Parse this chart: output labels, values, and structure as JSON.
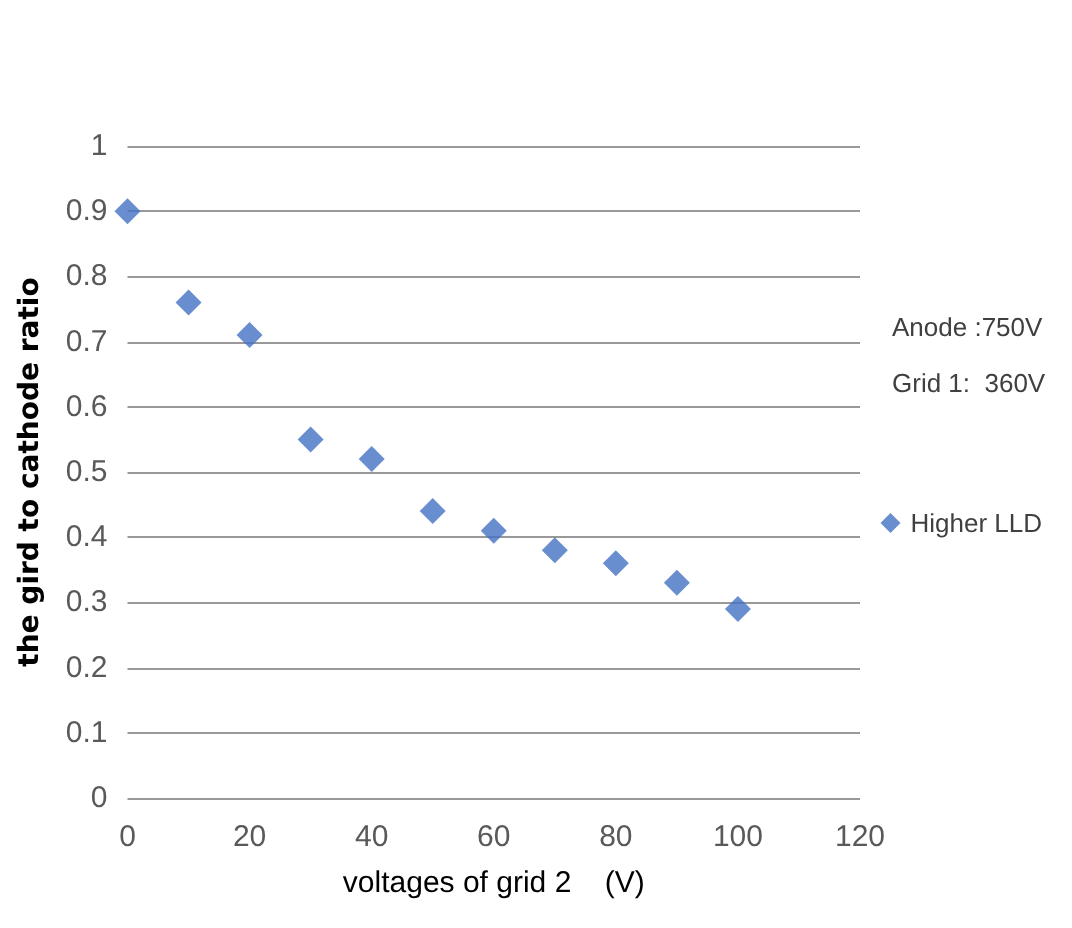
{
  "chart_data": {
    "type": "scatter",
    "xlabel": "voltages of grid 2    (V)",
    "ylabel": "the gird to cathode ratio",
    "x": [
      0,
      10,
      20,
      30,
      40,
      50,
      60,
      70,
      80,
      90,
      100
    ],
    "series": [
      {
        "name": "Higher LLD",
        "color": "#4472c4",
        "values": [
          0.9,
          0.76,
          0.71,
          0.55,
          0.52,
          0.44,
          0.41,
          0.38,
          0.36,
          0.33,
          0.29
        ]
      }
    ],
    "xlim": [
      0,
      120
    ],
    "xticks": [
      0,
      20,
      40,
      60,
      80,
      100,
      120
    ],
    "ylim": [
      0,
      1
    ],
    "yticks": [
      0,
      0.1,
      0.2,
      0.3,
      0.4,
      0.5,
      0.6,
      0.7,
      0.8,
      0.9,
      1
    ],
    "annotations": [
      "Anode :750V",
      "Grid 1:  360V"
    ],
    "grid": "y",
    "legend": "right",
    "marker": "diamond"
  }
}
